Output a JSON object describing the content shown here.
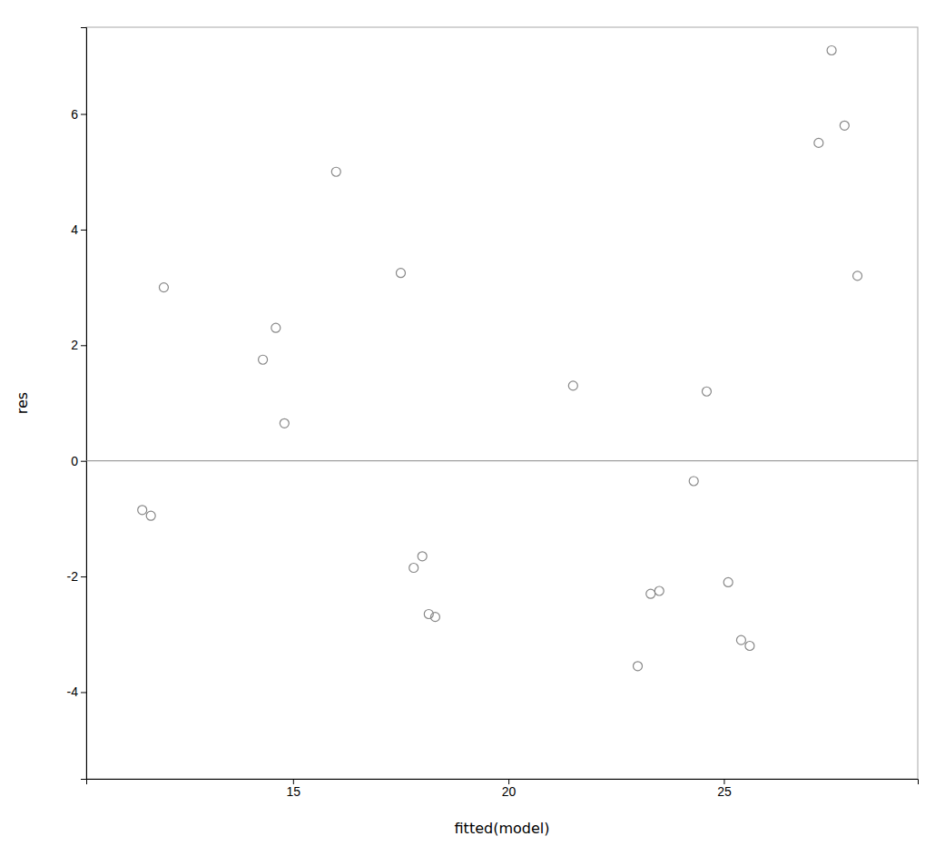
{
  "chart_data": {
    "type": "scatter",
    "xlabel": "fitted(model)",
    "ylabel": "res",
    "x": [
      11.5,
      11.7,
      12.0,
      14.3,
      14.6,
      14.8,
      16.0,
      17.5,
      17.8,
      18.0,
      18.15,
      18.3,
      21.5,
      23.0,
      23.3,
      23.5,
      24.3,
      24.6,
      25.1,
      25.4,
      25.6,
      27.2,
      27.5,
      27.8,
      28.1
    ],
    "values": [
      -0.85,
      -0.95,
      3.0,
      1.75,
      2.3,
      0.65,
      5.0,
      3.25,
      -1.85,
      -1.65,
      -2.65,
      -2.7,
      1.3,
      -3.55,
      -2.3,
      -2.25,
      -0.35,
      1.2,
      -2.1,
      -3.1,
      -3.2,
      5.5,
      7.1,
      5.8,
      3.2
    ],
    "xlim": [
      10.2,
      29.5
    ],
    "ylim": [
      -5.5,
      7.5
    ],
    "xticks": [
      15,
      20,
      25
    ],
    "yticks": [
      -4,
      -2,
      0,
      2,
      4,
      6
    ],
    "hline": 0,
    "color": "#888888",
    "marker": "open-circle",
    "grid": false
  }
}
